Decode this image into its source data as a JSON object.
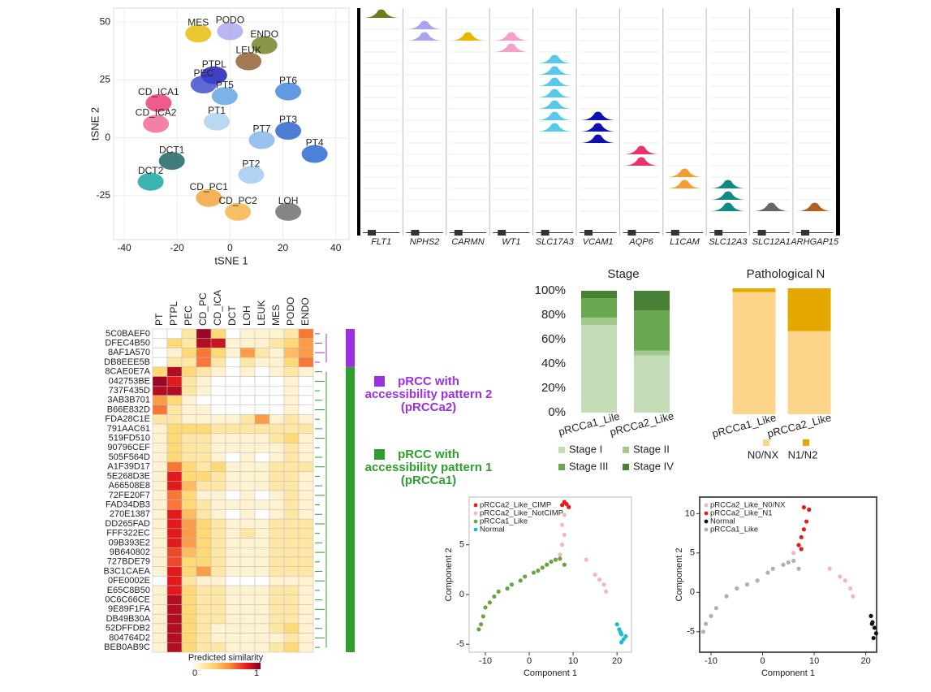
{
  "chart_data": [
    {
      "type": "scatter",
      "x_label": "tSNE 1",
      "y_label": "tSNE 2",
      "xlim": [
        -44,
        45
      ],
      "ylim": [
        -44,
        56
      ],
      "xticks": [
        -40,
        -20,
        0,
        20,
        40
      ],
      "yticks": [
        -25,
        0,
        25,
        50
      ],
      "grid": true,
      "points": [
        {
          "label": "MES",
          "x": -12,
          "y": 45,
          "color": "#e6b800"
        },
        {
          "label": "PODO",
          "x": 0,
          "y": 46,
          "color": "#a9a3f0"
        },
        {
          "label": "ENDO",
          "x": 13,
          "y": 40,
          "color": "#6b7d1a"
        },
        {
          "label": "LEUK",
          "x": 7,
          "y": 33,
          "color": "#8b5a2b"
        },
        {
          "label": "PTPL",
          "x": -6,
          "y": 27,
          "color": "#1010b0"
        },
        {
          "label": "PEC",
          "x": -10,
          "y": 23,
          "color": "#3344cc"
        },
        {
          "label": "CD_ICA1",
          "x": -27,
          "y": 15,
          "color": "#e8336d"
        },
        {
          "label": "PT6",
          "x": 22,
          "y": 20,
          "color": "#3a7fdc"
        },
        {
          "label": "PT5",
          "x": -2,
          "y": 18,
          "color": "#5aa0e0"
        },
        {
          "label": "CD_ICA2",
          "x": -28,
          "y": 6,
          "color": "#f06090"
        },
        {
          "label": "PT1",
          "x": -5,
          "y": 7,
          "color": "#a8d0f0"
        },
        {
          "label": "PT3",
          "x": 22,
          "y": 3,
          "color": "#1f5fc8"
        },
        {
          "label": "PT7",
          "x": 12,
          "y": -1,
          "color": "#7fb3e8"
        },
        {
          "label": "PT4",
          "x": 32,
          "y": -7,
          "color": "#2060d0"
        },
        {
          "label": "DCT1",
          "x": -22,
          "y": -10,
          "color": "#0e5c5a"
        },
        {
          "label": "PT2",
          "x": 8,
          "y": -16,
          "color": "#9ec8f0"
        },
        {
          "label": "DCT2",
          "x": -30,
          "y": -19,
          "color": "#0aa0a0"
        },
        {
          "label": "CD_PC1",
          "x": -8,
          "y": -26,
          "color": "#f0a030"
        },
        {
          "label": "CD_PC2",
          "x": 3,
          "y": -32,
          "color": "#f5b040"
        },
        {
          "label": "LOH",
          "x": 22,
          "y": -32,
          "color": "#666666"
        }
      ]
    },
    {
      "type": "heatmap",
      "colorbar_label": "Predicted similarity",
      "colorbar_ticks": [
        0,
        1
      ],
      "columns": [
        "PT",
        "PTPL",
        "PEC",
        "CD_PC",
        "CD_ICA",
        "DCT",
        "LOH",
        "LEUK",
        "MES",
        "PODO",
        "ENDO"
      ],
      "rows": [
        "5C0BAEF0",
        "DFEC4B50",
        "8AF1A570",
        "DB8EEE5B",
        "8CAE0E7A",
        "042753BE",
        "737F435D",
        "3AB3B701",
        "B66E832D",
        "FDA28C1E",
        "791AAC61",
        "519FD510",
        "90796CEF",
        "505F564D",
        "A1F39D17",
        "5E268D3E",
        "A66508E8",
        "72FE20F7",
        "FAD34DB3",
        "270E1387",
        "DD265FAD",
        "FFF322EC",
        "09B393E2",
        "9B640802",
        "727BDE79",
        "B3C1CAEA",
        "0FE0002E",
        "E65C8B50",
        "0C6C66CE",
        "9E89F1FA",
        "DB49B30A",
        "52DFFDB2",
        "804764D2",
        "BEB0AB9C"
      ],
      "values": [
        [
          0,
          0,
          0.2,
          0.95,
          0.3,
          0,
          0.1,
          0.1,
          0.1,
          0.2,
          0.6
        ],
        [
          0,
          0.3,
          0.2,
          0.9,
          0.85,
          0.1,
          0.1,
          0.1,
          0.2,
          0.3,
          0.5
        ],
        [
          0,
          0.1,
          0.3,
          0.6,
          0.3,
          0.1,
          0.5,
          0.2,
          0.1,
          0.4,
          0.5
        ],
        [
          0,
          0.2,
          0.2,
          0.6,
          0.2,
          0,
          0.2,
          0.1,
          0.1,
          0.3,
          0.6
        ],
        [
          0.3,
          0.9,
          0.3,
          0.2,
          0.1,
          0,
          0.1,
          0,
          0.1,
          0.2,
          0.1
        ],
        [
          0.95,
          0.8,
          0.2,
          0.1,
          0,
          0,
          0,
          0,
          0,
          0.1,
          0
        ],
        [
          0.9,
          0.9,
          0.2,
          0.1,
          0,
          0,
          0,
          0,
          0,
          0.1,
          0
        ],
        [
          0.5,
          0.3,
          0.1,
          0,
          0,
          0,
          0,
          0,
          0,
          0.1,
          0
        ],
        [
          0.6,
          0.2,
          0.1,
          0.1,
          0,
          0,
          0,
          0,
          0,
          0.1,
          0
        ],
        [
          0.2,
          0.2,
          0.1,
          0.1,
          0.1,
          0.1,
          0.2,
          0.5,
          0.1,
          0.2,
          0.1
        ],
        [
          0.1,
          0.3,
          0.3,
          0.3,
          0.2,
          0.2,
          0.2,
          0.2,
          0.2,
          0.2,
          0.2
        ],
        [
          0.1,
          0.3,
          0.2,
          0.2,
          0.1,
          0.1,
          0.1,
          0.1,
          0.2,
          0.3,
          0.1
        ],
        [
          0.1,
          0.3,
          0.2,
          0.2,
          0.1,
          0.1,
          0.1,
          0.1,
          0.1,
          0.2,
          0.1
        ],
        [
          0.1,
          0.3,
          0.2,
          0.2,
          0.1,
          0,
          0.1,
          0,
          0.1,
          0.2,
          0.1
        ],
        [
          0.1,
          0.6,
          0.3,
          0.2,
          0.3,
          0.1,
          0.1,
          0.1,
          0.2,
          0.2,
          0.2
        ],
        [
          0.1,
          0.8,
          0.3,
          0.3,
          0.2,
          0.1,
          0.1,
          0.1,
          0.2,
          0.2,
          0.1
        ],
        [
          0.1,
          0.8,
          0.4,
          0.2,
          0.2,
          0.1,
          0.1,
          0.1,
          0.2,
          0.2,
          0.1
        ],
        [
          0.1,
          0.6,
          0.3,
          0.1,
          0.1,
          0,
          0.1,
          0,
          0.1,
          0.2,
          0.1
        ],
        [
          0.1,
          0.6,
          0.3,
          0.2,
          0.1,
          0.1,
          0.1,
          0.1,
          0.1,
          0.2,
          0.1
        ],
        [
          0.1,
          0.8,
          0.4,
          0.2,
          0.1,
          0,
          0.1,
          0,
          0.1,
          0.2,
          0.1
        ],
        [
          0.1,
          0.8,
          0.5,
          0.3,
          0.2,
          0.1,
          0.1,
          0.1,
          0.2,
          0.2,
          0.2
        ],
        [
          0.1,
          0.8,
          0.5,
          0.3,
          0.2,
          0.1,
          0.2,
          0.1,
          0.2,
          0.2,
          0.2
        ],
        [
          0.1,
          0.8,
          0.5,
          0.3,
          0.2,
          0.1,
          0.1,
          0.1,
          0.2,
          0.2,
          0.2
        ],
        [
          0.1,
          0.7,
          0.4,
          0.3,
          0.2,
          0.1,
          0.1,
          0.1,
          0.2,
          0.2,
          0.2
        ],
        [
          0.1,
          0.7,
          0.3,
          0.3,
          0.2,
          0.1,
          0.1,
          0.1,
          0.2,
          0.2,
          0.2
        ],
        [
          0.1,
          0.8,
          0.3,
          0.5,
          0.2,
          0.1,
          0.1,
          0.1,
          0.2,
          0.2,
          0.2
        ],
        [
          0,
          0.8,
          0.2,
          0.1,
          0.1,
          0,
          0,
          0,
          0.1,
          0.1,
          0.1
        ],
        [
          0.1,
          0.8,
          0.3,
          0.2,
          0.2,
          0.1,
          0.1,
          0.1,
          0.2,
          0.2,
          0.1
        ],
        [
          0.1,
          0.9,
          0.3,
          0.2,
          0.2,
          0.1,
          0.1,
          0.1,
          0.2,
          0.2,
          0.1
        ],
        [
          0.1,
          0.9,
          0.3,
          0.2,
          0.2,
          0.1,
          0.1,
          0.1,
          0.2,
          0.2,
          0.1
        ],
        [
          0.1,
          0.9,
          0.3,
          0.2,
          0.2,
          0.1,
          0.1,
          0.1,
          0.2,
          0.2,
          0.1
        ],
        [
          0.1,
          0.9,
          0.3,
          0.2,
          0.1,
          0.1,
          0.1,
          0.1,
          0.2,
          0.3,
          0.1
        ],
        [
          0.1,
          0.9,
          0.3,
          0.2,
          0.1,
          0.1,
          0.1,
          0.1,
          0.1,
          0.2,
          0.1
        ],
        [
          0.1,
          0.9,
          0.3,
          0.2,
          0.2,
          0.1,
          0.1,
          0.1,
          0.2,
          0.3,
          0.1
        ]
      ]
    },
    {
      "type": "stacked-bar",
      "title": "Stage",
      "categories": [
        "pRCCa1_Lile",
        "pRCCa2_Like"
      ],
      "ylim": [
        0,
        100
      ],
      "yticks": [
        {
          "value": 0,
          "label": "0%"
        },
        {
          "value": 20,
          "label": "20%"
        },
        {
          "value": 40,
          "label": "40%"
        },
        {
          "value": 60,
          "label": "60%"
        },
        {
          "value": 80,
          "label": "80%"
        },
        {
          "value": 100,
          "label": "100%"
        }
      ],
      "series": [
        {
          "name": "Stage I",
          "color": "#c5dcb8",
          "values": [
            72,
            47
          ]
        },
        {
          "name": "Stage II",
          "color": "#a3c98f",
          "values": [
            6,
            4
          ]
        },
        {
          "name": "Stage III",
          "color": "#6aa84f",
          "values": [
            16,
            33
          ]
        },
        {
          "name": "Stage IV",
          "color": "#4a7f36",
          "values": [
            6,
            16
          ]
        }
      ]
    },
    {
      "type": "stacked-bar",
      "title": "Pathological N",
      "categories": [
        "pRCCa1_Like",
        "pRCCa2_Like"
      ],
      "ylim": [
        0,
        100
      ],
      "series": [
        {
          "name": "N0/NX",
          "color": "#fdd58a",
          "values": [
            97,
            66
          ]
        },
        {
          "name": "N1/N2",
          "color": "#e5a800",
          "values": [
            3,
            34
          ]
        }
      ]
    },
    {
      "type": "scatter",
      "x_label": "Component 1",
      "y_label": "Component 2",
      "xlim": [
        -13.7,
        23.3
      ],
      "ylim": [
        -5.8,
        9.8
      ],
      "xticks": [
        -10,
        0,
        10,
        20
      ],
      "yticks": [
        -5,
        0,
        5
      ],
      "series": [
        {
          "name": "pRCCa2_Like_CIMP",
          "color": "#e41a1c",
          "x": [
            7.5,
            8,
            8.5,
            9
          ],
          "y": [
            9,
            9.3,
            9.1,
            8.8
          ]
        },
        {
          "name": "pRCCa2_Like_NotCIMP",
          "color": "#f4b6c2",
          "x": [
            7,
            7.5,
            8,
            7.5,
            8,
            13,
            15,
            16,
            17,
            17.5
          ],
          "y": [
            4,
            5,
            6,
            7,
            8,
            3.5,
            2,
            1.5,
            1,
            0.3
          ]
        },
        {
          "name": "pRCCa1_Like",
          "color": "#66a641",
          "x": [
            -11.5,
            -11,
            -10.5,
            -10,
            -9,
            -8,
            -7,
            -5,
            -4,
            -2,
            -1,
            1,
            2,
            3,
            4,
            5,
            6,
            7,
            8
          ],
          "y": [
            -3.5,
            -3,
            -2.2,
            -1.3,
            -0.8,
            -0.2,
            0.3,
            0.6,
            1,
            1.4,
            1.8,
            2.2,
            2.4,
            2.7,
            3,
            3.3,
            3.5,
            3.6,
            3
          ]
        },
        {
          "name": "Normal",
          "color": "#17becf",
          "x": [
            20,
            20.5,
            21,
            21.5,
            21,
            20.8,
            22
          ],
          "y": [
            -3,
            -3.5,
            -4,
            -4.5,
            -4.8,
            -3.8,
            -4.2
          ]
        }
      ]
    },
    {
      "type": "scatter",
      "x_label": "Component 1",
      "y_label": "Component 2",
      "xlim": [
        -12.2,
        22.1
      ],
      "ylim": [
        -7.6,
        12.1
      ],
      "xticks": [
        -10,
        0,
        10,
        20
      ],
      "yticks": [
        -5,
        0,
        5,
        10
      ],
      "series": [
        {
          "name": "pRCCa2_Like_N0/NX",
          "color": "#f4b6c2",
          "x": [
            13,
            15,
            16,
            17,
            17.5,
            6
          ],
          "y": [
            3,
            2,
            1.5,
            0.5,
            -0.5,
            5
          ]
        },
        {
          "name": "pRCCa2_Like_N1",
          "color": "#e41a1c",
          "x": [
            7,
            7.5,
            8,
            8.5,
            9,
            8,
            7.5
          ],
          "y": [
            6,
            7,
            8,
            9,
            10.5,
            10.8,
            5.5
          ]
        },
        {
          "name": "Normal",
          "color": "#111111",
          "x": [
            21,
            21.3,
            21.7,
            22,
            21.5,
            21.2
          ],
          "y": [
            -3,
            -3.8,
            -4.5,
            -5.2,
            -5.8,
            -4
          ]
        },
        {
          "name": "pRCCa1_Like",
          "color": "#b0b0b0",
          "x": [
            -11.5,
            -11,
            -10,
            -9,
            -7,
            -5,
            -3,
            -1,
            1,
            2,
            4,
            5,
            6,
            7
          ],
          "y": [
            -5,
            -4,
            -3,
            -2,
            -0.5,
            0.5,
            1,
            1.5,
            2.5,
            3,
            3.5,
            3.8,
            4,
            3
          ]
        }
      ]
    }
  ],
  "tracks": {
    "genes": [
      "FLT1",
      "NPHS2",
      "CARMN",
      "WT1",
      "SLC17A3",
      "VCAM1",
      "AQP6",
      "L1CAM",
      "SLC12A3",
      "SLC12A1",
      "ARHGAP15"
    ]
  },
  "groups": [
    {
      "lines": [
        "pRCC with",
        "accessibility pattern 2",
        "(pRCCa2)"
      ],
      "color": "#9b30e0"
    },
    {
      "lines": [
        "pRCC with",
        "accessibility pattern 1",
        "(pRCCa1)"
      ],
      "color": "#2e9e2e"
    }
  ]
}
